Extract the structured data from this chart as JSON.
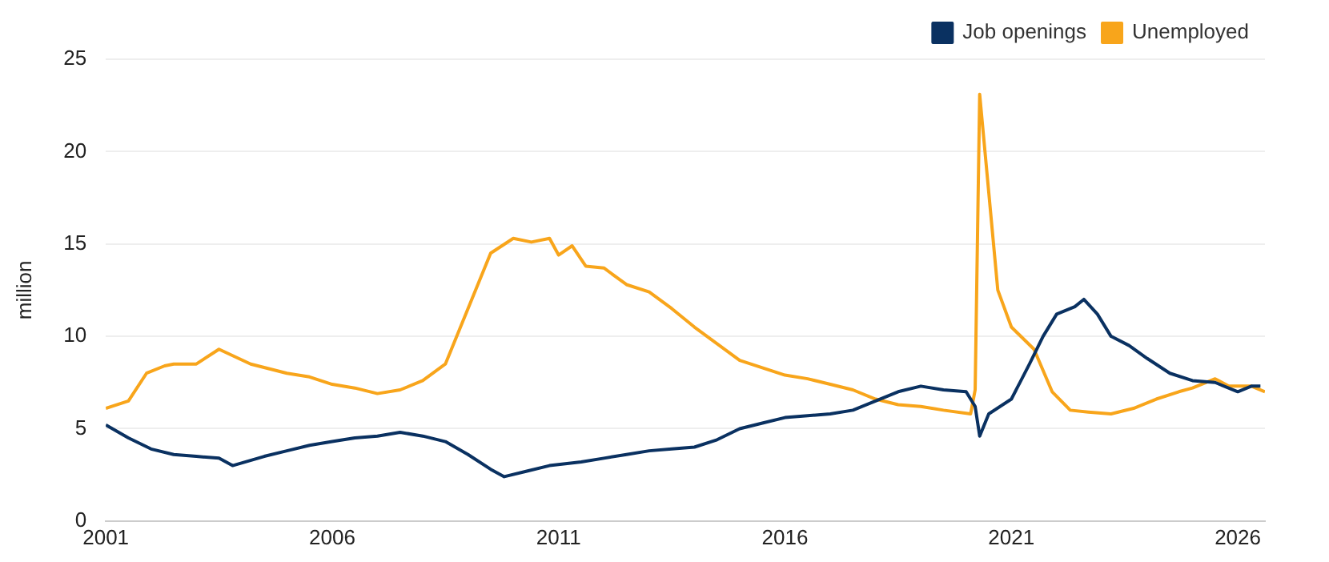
{
  "chart_data": {
    "type": "line",
    "ylabel": "million",
    "xlim": [
      2001,
      2026.6
    ],
    "xticks": [
      2001,
      2006,
      2011,
      2016,
      2021,
      2026
    ],
    "ylim": [
      0,
      25
    ],
    "yticks": [
      0,
      5,
      10,
      15,
      20,
      25
    ],
    "grid": "y",
    "legend": "top right",
    "marker": "none",
    "line_style": "solid",
    "series": [
      {
        "name": "Job openings",
        "color": "#0a3161",
        "x": [
          2001,
          2001.5,
          2002,
          2002.5,
          2003,
          2003.5,
          2003.8,
          2004.5,
          2005,
          2005.5,
          2006,
          2006.5,
          2007,
          2007.5,
          2008,
          2008.5,
          2009,
          2009.5,
          2009.8,
          2010.3,
          2010.8,
          2011.5,
          2012,
          2012.5,
          2013,
          2013.5,
          2014,
          2014.5,
          2015,
          2015.5,
          2016,
          2016.5,
          2017,
          2017.5,
          2018,
          2018.5,
          2019,
          2019.5,
          2020,
          2020.2,
          2020.3,
          2020.5,
          2021,
          2021.4,
          2021.7,
          2022,
          2022.4,
          2022.6,
          2022.9,
          2023.2,
          2023.6,
          2024,
          2024.5,
          2025,
          2025.5,
          2026,
          2026.3,
          2026.5
        ],
        "values": [
          5.2,
          4.5,
          3.9,
          3.6,
          3.5,
          3.4,
          3.0,
          3.5,
          3.8,
          4.1,
          4.3,
          4.5,
          4.6,
          4.8,
          4.6,
          4.3,
          3.6,
          2.8,
          2.4,
          2.7,
          3.0,
          3.2,
          3.4,
          3.6,
          3.8,
          3.9,
          4.0,
          4.4,
          5.0,
          5.3,
          5.6,
          5.7,
          5.8,
          6.0,
          6.5,
          7.0,
          7.3,
          7.1,
          7.0,
          6.2,
          4.6,
          5.8,
          6.6,
          8.5,
          10.0,
          11.2,
          11.6,
          12.0,
          11.2,
          10.0,
          9.5,
          8.8,
          8.0,
          7.6,
          7.5,
          7.0,
          7.3,
          7.3
        ]
      },
      {
        "name": "Unemployed",
        "color": "#f8a51b",
        "x": [
          2001,
          2001.5,
          2001.9,
          2002.3,
          2002.5,
          2003,
          2003.5,
          2004.2,
          2005,
          2005.5,
          2006,
          2006.5,
          2007,
          2007.5,
          2008,
          2008.5,
          2009,
          2009.5,
          2010,
          2010.4,
          2010.8,
          2011,
          2011.3,
          2011.6,
          2012,
          2012.5,
          2013,
          2013.5,
          2014,
          2014.5,
          2015,
          2015.5,
          2016,
          2016.5,
          2017,
          2017.5,
          2018,
          2018.5,
          2019,
          2019.5,
          2020.1,
          2020.2,
          2020.3,
          2020.5,
          2020.7,
          2021,
          2021.5,
          2021.9,
          2022.3,
          2022.7,
          2023.2,
          2023.7,
          2024.2,
          2024.7,
          2025,
          2025.5,
          2025.8,
          2026.3,
          2026.6
        ],
        "values": [
          6.1,
          6.5,
          8.0,
          8.4,
          8.5,
          8.5,
          9.3,
          8.5,
          8.0,
          7.8,
          7.4,
          7.2,
          6.9,
          7.1,
          7.6,
          8.5,
          11.5,
          14.5,
          15.3,
          15.1,
          15.3,
          14.4,
          14.9,
          13.8,
          13.7,
          12.8,
          12.4,
          11.5,
          10.5,
          9.6,
          8.7,
          8.3,
          7.9,
          7.7,
          7.4,
          7.1,
          6.6,
          6.3,
          6.2,
          6.0,
          5.8,
          7.1,
          23.1,
          17.8,
          12.5,
          10.5,
          9.3,
          7.0,
          6.0,
          5.9,
          5.8,
          6.1,
          6.6,
          7.0,
          7.2,
          7.7,
          7.3,
          7.3,
          7.0
        ]
      }
    ]
  }
}
